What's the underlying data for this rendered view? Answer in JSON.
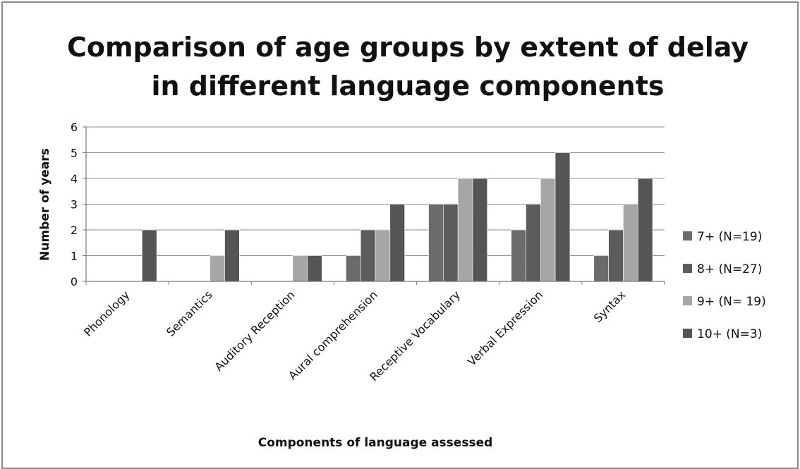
{
  "chart_data": {
    "type": "bar",
    "title_lines": [
      "Comparison of age groups by extent of delay",
      "in different language components"
    ],
    "xlabel": "Components of language assessed",
    "ylabel": "Number of years",
    "ylim": [
      0,
      6
    ],
    "yticks": [
      0,
      1,
      2,
      3,
      4,
      5,
      6
    ],
    "grid": true,
    "legend_position": "right",
    "categories": [
      "Phonology",
      "Semantics",
      "Auditory Reception",
      "Aural comprehension",
      "Receptive Vocabulary",
      "Verbal Expression",
      "Syntax"
    ],
    "series": [
      {
        "name": "7+ (N=19)",
        "color": "#6b6b6b",
        "values": [
          0,
          0,
          0,
          1,
          3,
          2,
          1
        ]
      },
      {
        "name": "8+ (N=27)",
        "color": "#5c5c5c",
        "values": [
          0,
          0,
          0,
          2,
          3,
          3,
          2
        ]
      },
      {
        "name": "9+ (N= 19)",
        "color": "#a6a6a6",
        "values": [
          0,
          1,
          1,
          2,
          4,
          4,
          3
        ]
      },
      {
        "name": "10+ (N=3)",
        "color": "#555555",
        "values": [
          2,
          2,
          1,
          3,
          4,
          5,
          4
        ]
      }
    ]
  }
}
